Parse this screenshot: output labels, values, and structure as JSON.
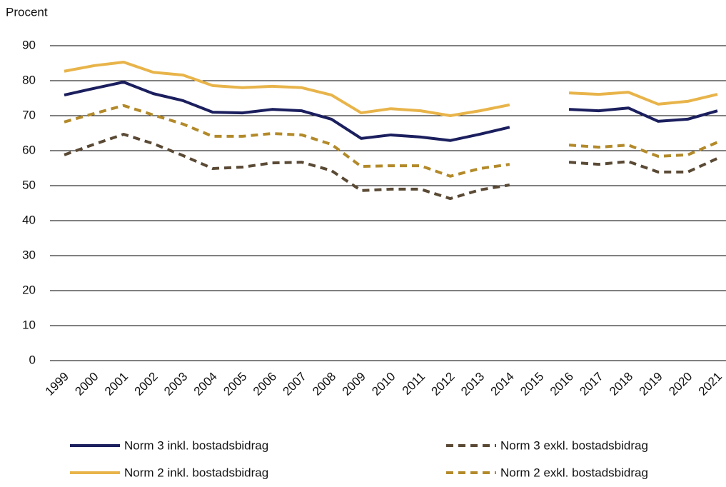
{
  "chart_data": {
    "type": "line",
    "y_label": "Procent",
    "categories": [
      "1999",
      "2000",
      "2001",
      "2002",
      "2003",
      "2004",
      "2005",
      "2006",
      "2007",
      "2008",
      "2009",
      "2010",
      "2011",
      "2012",
      "2013",
      "2014",
      "2015",
      "2016",
      "2017",
      "2018",
      "2019",
      "2020",
      "2021"
    ],
    "series": [
      {
        "name": "Norm 3 inkl. bostadsbidrag",
        "color": "#1b1f5e",
        "style": "solid",
        "values": [
          75.9,
          77.8,
          79.6,
          76.3,
          74.3,
          71.0,
          70.8,
          71.8,
          71.4,
          69.0,
          63.5,
          64.5,
          63.9,
          62.9,
          64.7,
          66.7,
          null,
          71.8,
          71.4,
          72.2,
          68.4,
          69.0,
          71.4
        ]
      },
      {
        "name": "Norm 3 exkl. bostadsbidrag",
        "color": "#5a4a35",
        "style": "dashed",
        "values": [
          58.8,
          61.8,
          64.7,
          62.0,
          58.6,
          54.9,
          55.3,
          56.5,
          56.7,
          54.3,
          48.6,
          49.0,
          49.0,
          46.3,
          48.8,
          50.2,
          null,
          56.7,
          56.1,
          56.9,
          53.9,
          53.9,
          57.8
        ]
      },
      {
        "name": "Norm 2 inkl. bostadsbidrag",
        "color": "#e8b44a",
        "style": "solid",
        "values": [
          82.7,
          84.3,
          85.3,
          82.4,
          81.6,
          78.6,
          78.0,
          78.4,
          78.0,
          75.9,
          70.8,
          72.0,
          71.4,
          70.0,
          71.4,
          73.1,
          null,
          76.5,
          76.1,
          76.7,
          73.3,
          74.1,
          76.1
        ]
      },
      {
        "name": "Norm 2 exkl. bostadsbidrag",
        "color": "#b38a2a",
        "style": "dashed",
        "values": [
          68.2,
          70.6,
          72.9,
          70.2,
          67.6,
          64.1,
          64.1,
          64.9,
          64.5,
          61.8,
          55.5,
          55.7,
          55.7,
          52.7,
          54.9,
          56.1,
          null,
          61.6,
          61.0,
          61.6,
          58.4,
          58.8,
          62.4
        ]
      }
    ],
    "ylim": [
      0,
      90
    ],
    "yticks": [
      0,
      10,
      20,
      30,
      40,
      50,
      60,
      70,
      80,
      90
    ],
    "grid": true
  }
}
